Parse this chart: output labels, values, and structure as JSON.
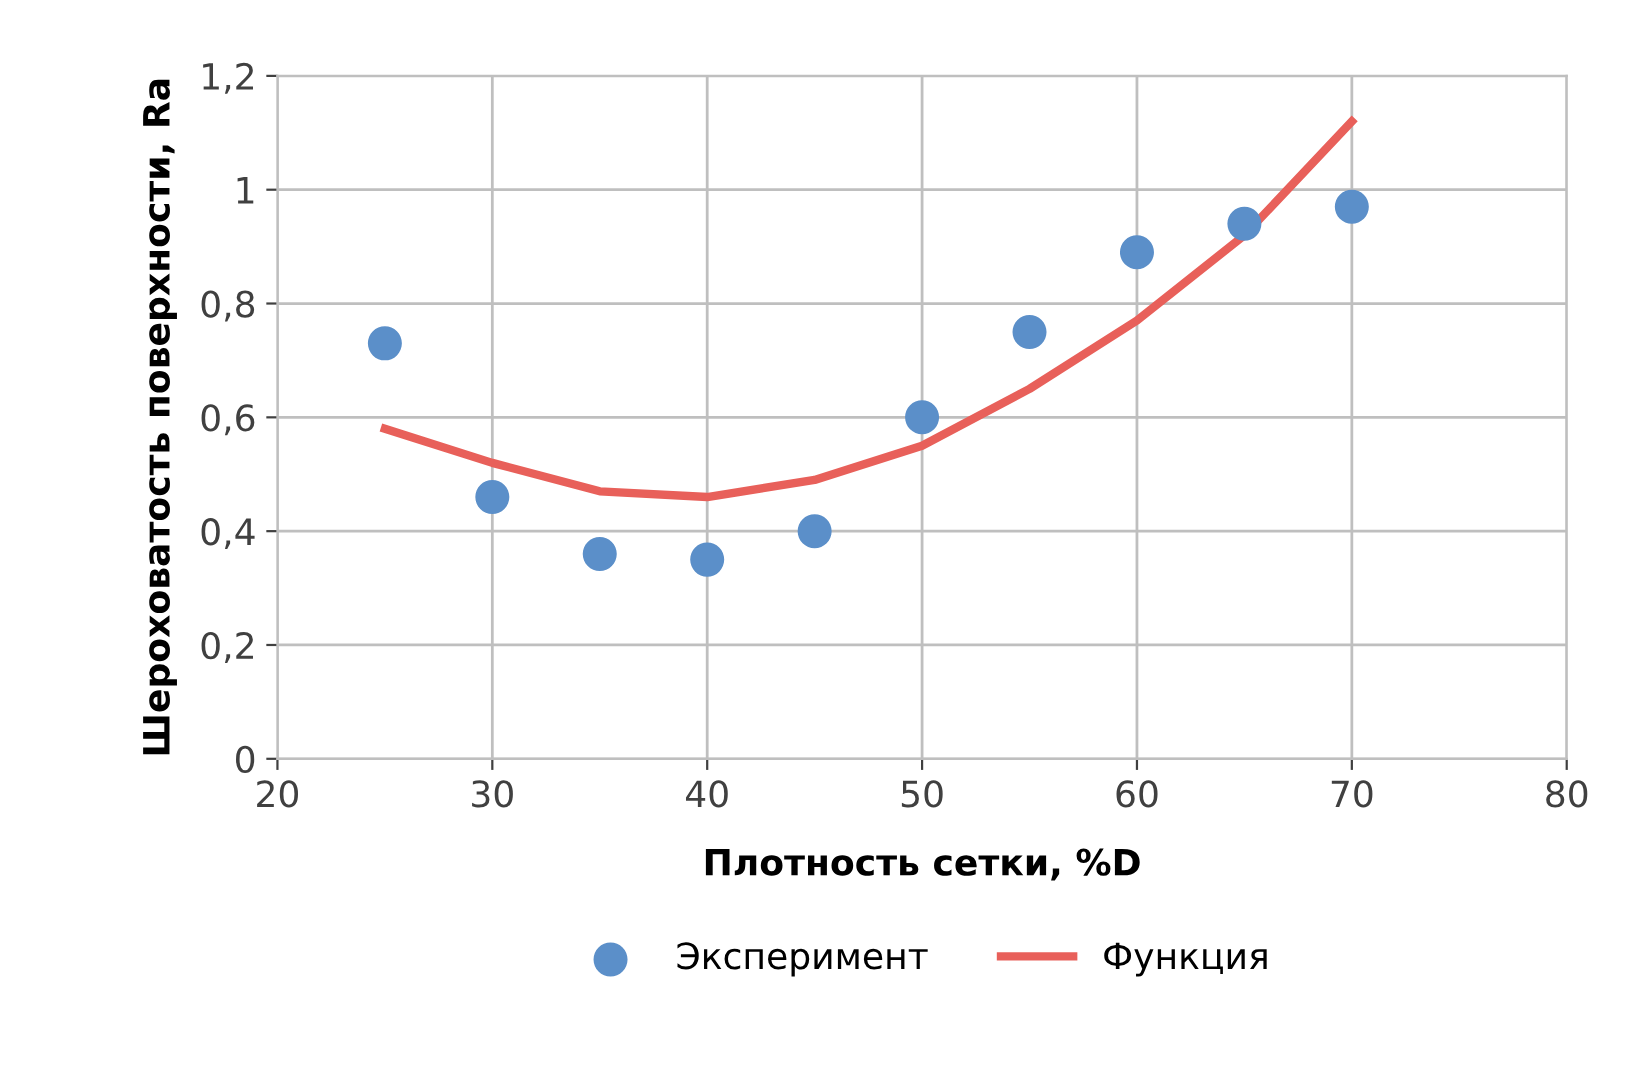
{
  "chart_data": {
    "type": "scatter",
    "xlabel": "Плотность сетки, %D",
    "ylabel": "Шероховатость поверхности, Ra",
    "xlim": [
      20,
      80
    ],
    "xticks": [
      20,
      30,
      40,
      50,
      60,
      70,
      80
    ],
    "ylim": [
      0,
      1.2
    ],
    "yticks": [
      {
        "value": 0,
        "label": "0"
      },
      {
        "value": 0.2,
        "label": "0,2"
      },
      {
        "value": 0.4,
        "label": "0,4"
      },
      {
        "value": 0.6,
        "label": "0,6"
      },
      {
        "value": 0.8,
        "label": "0,8"
      },
      {
        "value": 1,
        "label": "1"
      },
      {
        "value": 1.2,
        "label": "1,2"
      }
    ],
    "grid": true,
    "legend": "bottom",
    "series": [
      {
        "name": "Эксперимент",
        "marker": "circle",
        "color": "#5b8fc9",
        "x": [
          25,
          30,
          35,
          40,
          45,
          50,
          55,
          60,
          65,
          70
        ],
        "values": [
          0.73,
          0.46,
          0.36,
          0.35,
          0.4,
          0.6,
          0.75,
          0.89,
          0.94,
          0.97
        ]
      },
      {
        "name": "Функция",
        "type": "line",
        "line_style": "solid",
        "marker": "none",
        "color": "#e8605a",
        "x": [
          25,
          30,
          35,
          40,
          45,
          50,
          55,
          60,
          65,
          70
        ],
        "values": [
          0.58,
          0.52,
          0.47,
          0.46,
          0.49,
          0.55,
          0.65,
          0.77,
          0.92,
          1.12
        ]
      }
    ]
  }
}
